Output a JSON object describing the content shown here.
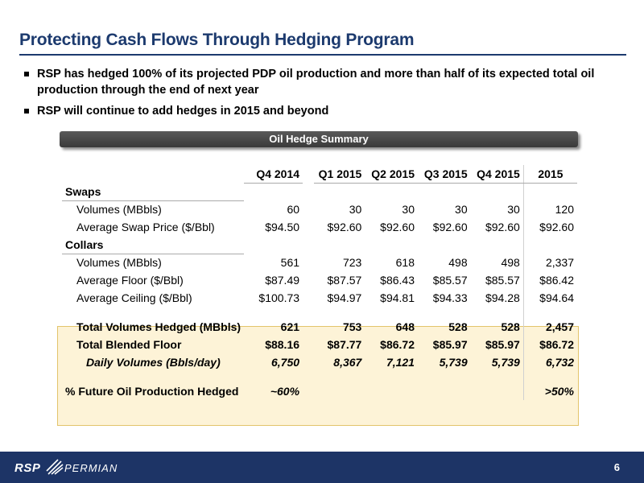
{
  "title": "Protecting Cash Flows Through Hedging Program",
  "bullets": [
    "RSP has hedged 100% of its projected PDP oil production and more than half of its expected total oil production through the end of next year",
    "RSP will continue to add hedges in 2015 and beyond"
  ],
  "summary_title": "Oil Hedge Summary",
  "table": {
    "columns": [
      "Q4 2014",
      "Q1 2015",
      "Q2 2015",
      "Q3 2015",
      "Q4 2015",
      "2015"
    ],
    "swaps": {
      "header": "Swaps",
      "rows": [
        {
          "label": "Volumes (MBbls)",
          "values": [
            "60",
            "30",
            "30",
            "30",
            "30",
            "120"
          ]
        },
        {
          "label": "Average Swap Price ($/Bbl)",
          "values": [
            "$94.50",
            "$92.60",
            "$92.60",
            "$92.60",
            "$92.60",
            "$92.60"
          ]
        }
      ]
    },
    "collars": {
      "header": "Collars",
      "rows": [
        {
          "label": "Volumes (MBbls)",
          "values": [
            "561",
            "723",
            "618",
            "498",
            "498",
            "2,337"
          ]
        },
        {
          "label": "Average Floor ($/Bbl)",
          "values": [
            "$87.49",
            "$87.57",
            "$86.43",
            "$85.57",
            "$85.57",
            "$86.42"
          ]
        },
        {
          "label": "Average Ceiling ($/Bbl)",
          "values": [
            "$100.73",
            "$94.97",
            "$94.81",
            "$94.33",
            "$94.28",
            "$94.64"
          ]
        }
      ]
    },
    "totals": [
      {
        "label": "Total Volumes Hedged (MBbls)",
        "values": [
          "621",
          "753",
          "648",
          "528",
          "528",
          "2,457"
        ]
      },
      {
        "label": "Total Blended Floor",
        "values": [
          "$88.16",
          "$87.77",
          "$86.72",
          "$85.97",
          "$85.97",
          "$86.72"
        ]
      }
    ],
    "daily": {
      "label": "Daily Volumes (Bbls/day)",
      "values": [
        "6,750",
        "8,367",
        "7,121",
        "5,739",
        "5,739",
        "6,732"
      ]
    },
    "future": {
      "label": "% Future Oil Production Hedged",
      "q4_2014": "~60%",
      "year_2015": ">50%"
    }
  },
  "footer": {
    "logo_rsp": "RSP",
    "logo_permian": "PERMIAN",
    "page_number": "6"
  }
}
